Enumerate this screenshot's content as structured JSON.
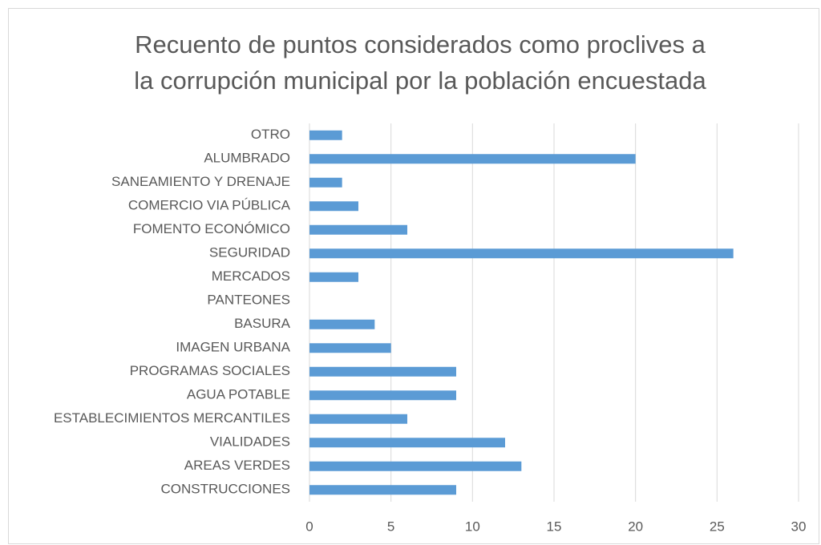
{
  "chart_data": {
    "type": "barh",
    "title": [
      "Recuento de puntos considerados como proclives a",
      "la corrupción municipal por la población encuestada"
    ],
    "categories": [
      "OTRO",
      "ALUMBRADO",
      "SANEAMIENTO Y DRENAJE",
      "COMERCIO VIA PÚBLICA",
      "FOMENTO ECONÓMICO",
      "SEGURIDAD",
      "MERCADOS",
      "PANTEONES",
      "BASURA",
      "IMAGEN URBANA",
      "PROGRAMAS SOCIALES",
      "AGUA POTABLE",
      "ESTABLECIMIENTOS MERCANTILES",
      "VIALIDADES",
      "AREAS VERDES",
      "CONSTRUCCIONES"
    ],
    "values": [
      2,
      20,
      2,
      3,
      6,
      26,
      3,
      0,
      4,
      5,
      9,
      9,
      6,
      12,
      13,
      9
    ],
    "color": "#5b9bd5",
    "xlim": [
      0,
      30
    ],
    "xticks": [
      0,
      5,
      10,
      15,
      20,
      25,
      30
    ],
    "grid": true
  }
}
